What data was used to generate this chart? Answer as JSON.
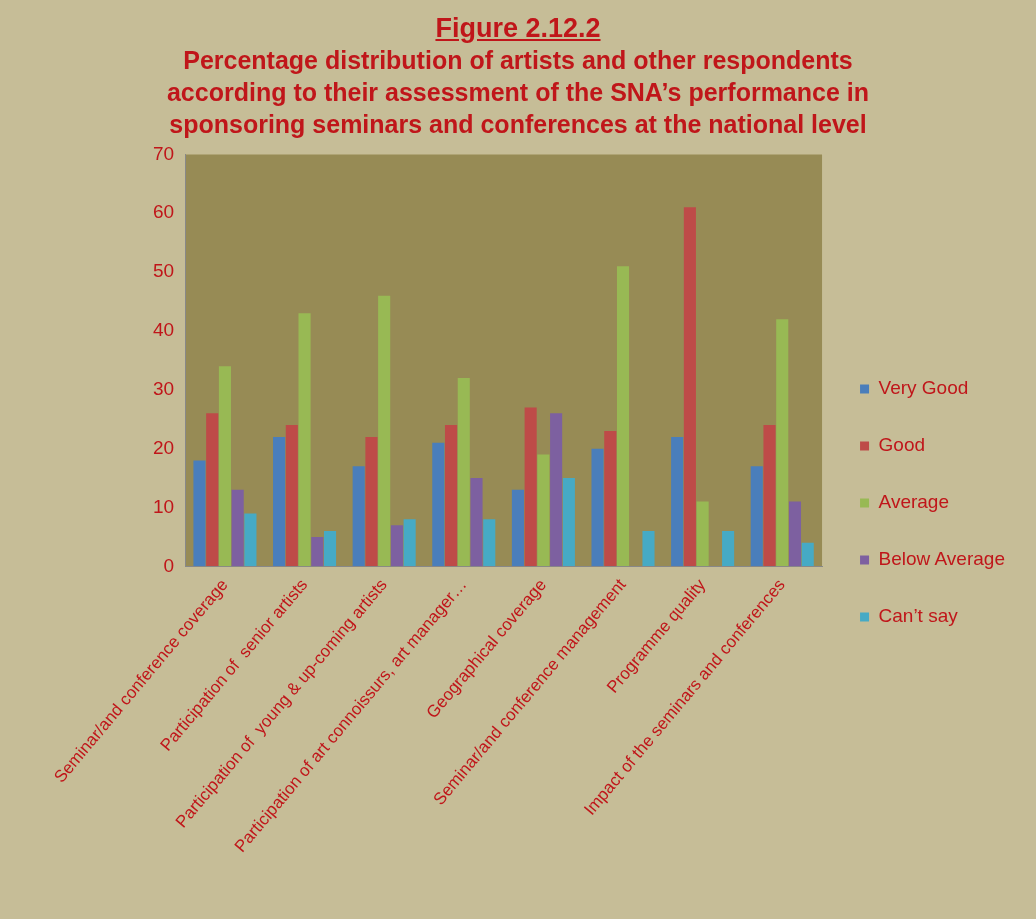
{
  "chart_data": {
    "type": "bar",
    "title": "Figure 2.12.2",
    "subtitle": "Percentage distribution of artists and other respondents according to their assessment of the SNA’s performance in sponsoring seminars and conferences at the national level",
    "categories": [
      "Seminar/and conference coverage",
      "Participation of  senior artists",
      "Participation of  young & up-coming artists",
      "Participation of art connoissurs, art manager…",
      "Geographical coverage",
      "Seminar/and conference management",
      "Programme quality",
      "Impact of the seminars and conferences"
    ],
    "series": [
      {
        "name": "Very Good",
        "color": "#4a7ebb",
        "values": [
          18,
          22,
          17,
          21,
          13,
          20,
          22,
          17
        ]
      },
      {
        "name": "Good",
        "color": "#be4b48",
        "values": [
          26,
          24,
          22,
          24,
          27,
          23,
          61,
          24
        ]
      },
      {
        "name": "Average",
        "color": "#98b954",
        "values": [
          34,
          43,
          46,
          32,
          19,
          51,
          11,
          42
        ]
      },
      {
        "name": "Below Average",
        "color": "#7d60a0",
        "values": [
          13,
          5,
          7,
          15,
          26,
          0,
          0,
          11
        ]
      },
      {
        "name": "Can’t say",
        "color": "#46aac5",
        "values": [
          9,
          6,
          8,
          8,
          15,
          6,
          6,
          4
        ]
      }
    ],
    "ylim": [
      0,
      70
    ],
    "yticks": [
      0,
      10,
      20,
      30,
      40,
      50,
      60,
      70
    ],
    "grid": false,
    "legend": "right"
  }
}
